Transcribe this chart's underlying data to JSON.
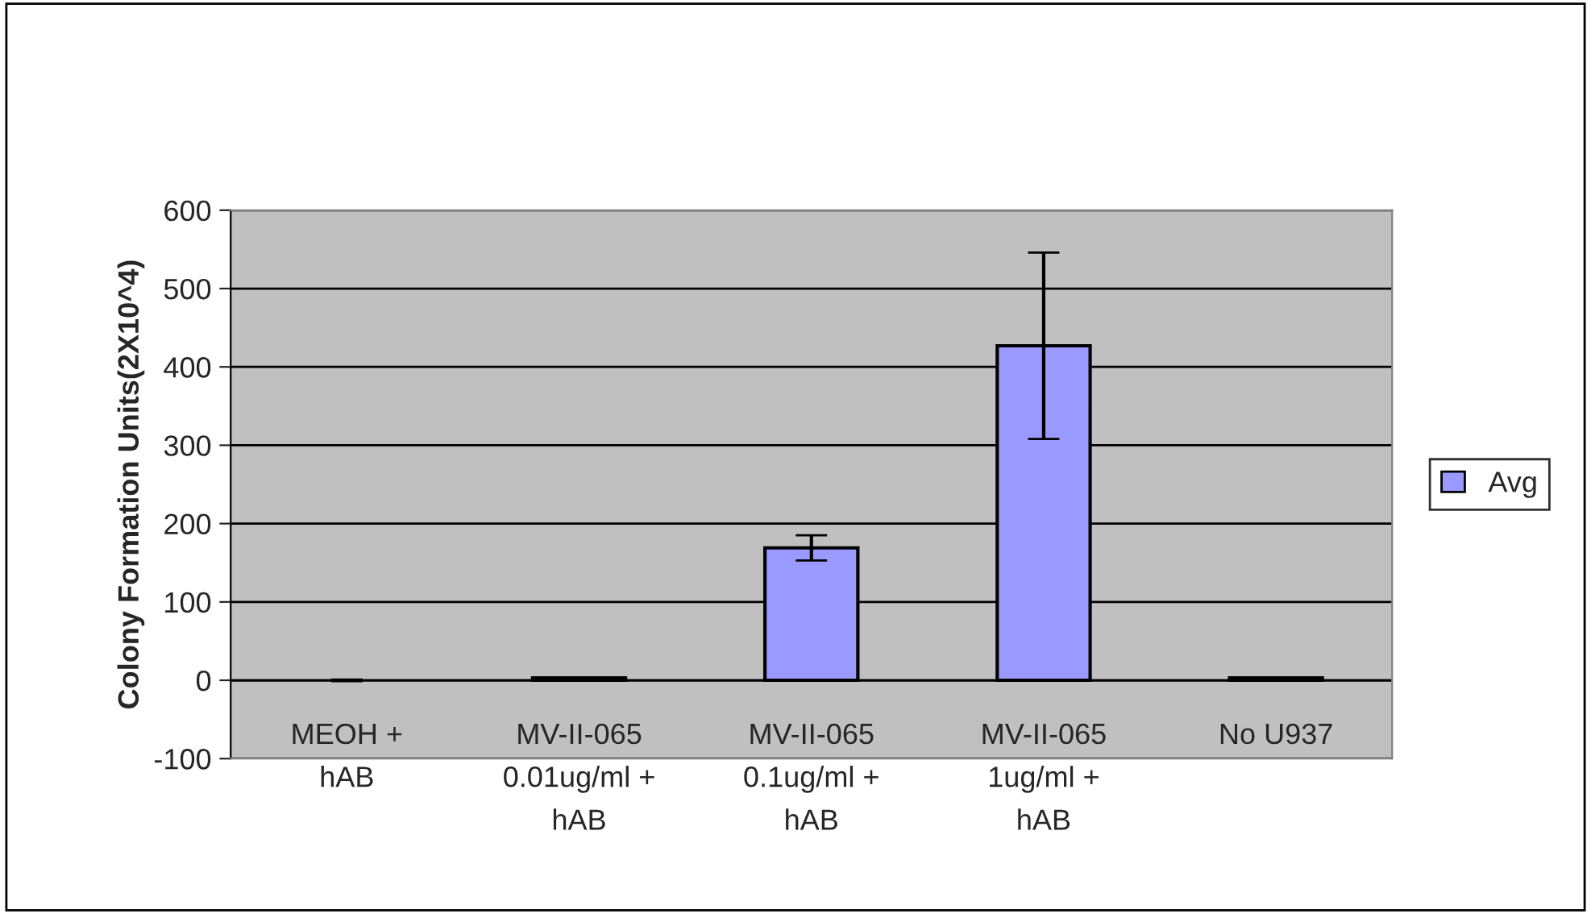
{
  "chart_data": {
    "type": "bar",
    "ylabel": "Colony Formation Units(2X10^4)",
    "categories": [
      "MEOH +\nhAB",
      "MV-II-065\n0.01ug/ml +\nhAB",
      "MV-II-065\n0.1ug/ml +\nhAB",
      "MV-II-065\n1ug/ml +\nhAB",
      "No U937"
    ],
    "series": [
      {
        "name": "Avg",
        "color": "#9999ff",
        "values": [
          0,
          3,
          169,
          427,
          3
        ],
        "errors": [
          1,
          null,
          16,
          119,
          null
        ]
      }
    ],
    "ylim": [
      -100,
      600
    ],
    "yticks": [
      -100,
      0,
      100,
      200,
      300,
      400,
      500,
      600
    ],
    "grid": "y",
    "legend": "right"
  }
}
